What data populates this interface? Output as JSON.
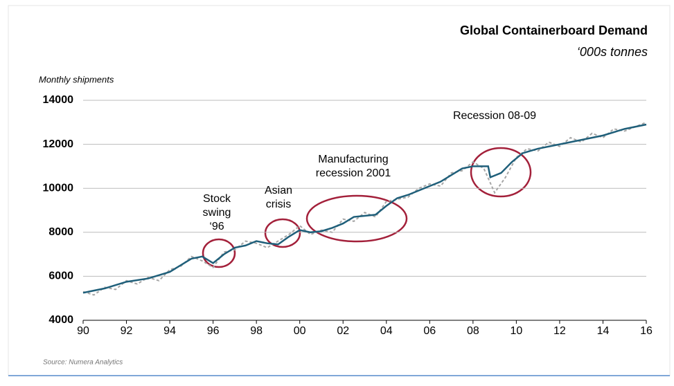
{
  "chart_data": {
    "type": "line",
    "title": "Global Containerboard Demand",
    "subtitle": "‘000s tonnes",
    "y_label": "Monthly shipments",
    "source": "Source: Numera Analytics",
    "annotations": [
      [
        "Stock",
        "swing",
        "‘96"
      ],
      [
        "Asian",
        "crisis"
      ],
      [
        "Manufacturing",
        "recession 2001"
      ],
      [
        "Recession 08-09"
      ]
    ],
    "xlim": [
      1990,
      2016
    ],
    "xticks": [
      {
        "value": 1990,
        "label": "90"
      },
      {
        "value": 1992,
        "label": "92"
      },
      {
        "value": 1994,
        "label": "94"
      },
      {
        "value": 1996,
        "label": "96"
      },
      {
        "value": 1998,
        "label": "98"
      },
      {
        "value": 2000,
        "label": "00"
      },
      {
        "value": 2002,
        "label": "02"
      },
      {
        "value": 2004,
        "label": "04"
      },
      {
        "value": 2006,
        "label": "06"
      },
      {
        "value": 2008,
        "label": "08"
      },
      {
        "value": 2010,
        "label": "10"
      },
      {
        "value": 2012,
        "label": "12"
      },
      {
        "value": 2014,
        "label": "14"
      },
      {
        "value": 2016,
        "label": "16"
      }
    ],
    "ylim": [
      4000,
      14000
    ],
    "yticks": [
      4000,
      6000,
      8000,
      10000,
      12000,
      14000
    ],
    "grid": true,
    "series": [
      {
        "color": "#a6a6a6",
        "dashed": true,
        "x": [
          1990,
          1990.5,
          1991,
          1991.5,
          1992,
          1992.5,
          1993,
          1993.5,
          1994,
          1994.5,
          1995,
          1995.5,
          1996,
          1996.5,
          1997,
          1997.5,
          1998,
          1998.5,
          1999,
          1999.5,
          2000,
          2000.5,
          2001,
          2001.5,
          2002,
          2002.5,
          2003,
          2003.5,
          2004,
          2004.5,
          2005,
          2005.5,
          2006,
          2006.5,
          2007,
          2007.5,
          2008,
          2008.5,
          2009,
          2009.5,
          2010,
          2010.5,
          2011,
          2011.5,
          2012,
          2012.5,
          2013,
          2013.5,
          2014,
          2014.5,
          2015,
          2015.5,
          2016
        ],
        "values": [
          5300,
          5150,
          5500,
          5400,
          5800,
          5650,
          5950,
          5800,
          6300,
          6450,
          6900,
          6700,
          6400,
          7100,
          7200,
          7600,
          7500,
          7300,
          7600,
          7900,
          8300,
          7900,
          8100,
          8000,
          8600,
          8500,
          8900,
          8700,
          9400,
          9500,
          9600,
          10000,
          10200,
          10100,
          10700,
          10800,
          11200,
          10900,
          9800,
          10500,
          11400,
          11800,
          11700,
          12100,
          11900,
          12300,
          12100,
          12500,
          12300,
          12700,
          12600,
          12800,
          13000
        ]
      },
      {
        "color": "#1f5f7a",
        "dashed": false,
        "x": [
          1990,
          1991,
          1992,
          1993,
          1994,
          1995,
          1995.5,
          1996,
          1996.5,
          1997,
          1997.5,
          1998,
          1998.5,
          1999,
          1999.5,
          2000,
          2000.5,
          2001,
          2001.5,
          2002,
          2002.5,
          2003,
          2003.5,
          2004,
          2004.5,
          2005,
          2005.5,
          2006,
          2006.5,
          2007,
          2007.5,
          2008,
          2008.7,
          2008.8,
          2009.3,
          2009.8,
          2010.3,
          2011,
          2012,
          2013,
          2014,
          2015,
          2016
        ],
        "values": [
          5250,
          5450,
          5750,
          5900,
          6200,
          6800,
          6900,
          6600,
          7000,
          7300,
          7400,
          7600,
          7500,
          7450,
          7800,
          8100,
          8000,
          8050,
          8200,
          8400,
          8700,
          8750,
          8800,
          9200,
          9550,
          9700,
          9900,
          10100,
          10300,
          10600,
          10900,
          11000,
          11000,
          10500,
          10700,
          11200,
          11600,
          11800,
          12000,
          12200,
          12400,
          12700,
          12900
        ]
      }
    ]
  }
}
